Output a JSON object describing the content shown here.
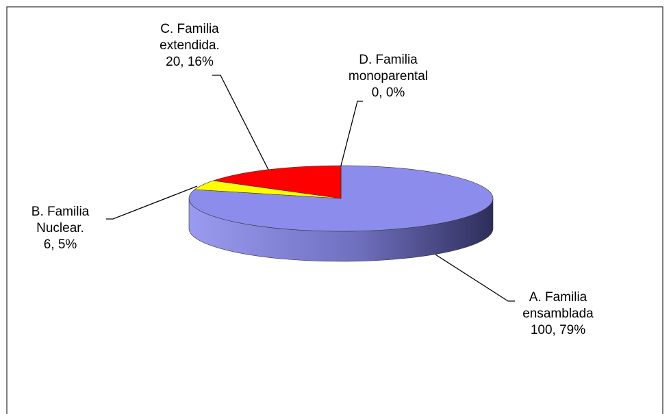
{
  "chart_data": {
    "type": "pie3d",
    "categories": [
      "A. Familia ensamblada",
      "B. Familia Nuclear.",
      "C. Familia extendida.",
      "D. Familia monoparental"
    ],
    "values": [
      100,
      6,
      20,
      0
    ],
    "value_labels": [
      "100, 79%",
      "6, 5%",
      "20, 16%",
      "0, 0%"
    ],
    "colors": [
      "#8c8cec",
      "#ffff00",
      "#ff0000",
      "#00ccff"
    ]
  }
}
